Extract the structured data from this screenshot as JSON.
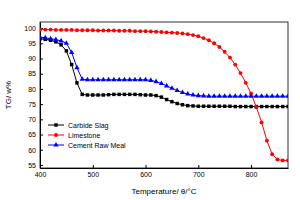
{
  "chart_data": {
    "type": "line",
    "x_label": "Temperature/ θ/°C",
    "y_label": "TG/ w%",
    "x": [
      400,
      410,
      420,
      430,
      440,
      450,
      460,
      470,
      480,
      490,
      500,
      510,
      520,
      530,
      540,
      550,
      560,
      570,
      580,
      590,
      600,
      610,
      620,
      630,
      640,
      650,
      660,
      670,
      680,
      690,
      700,
      710,
      720,
      730,
      740,
      750,
      760,
      770,
      780,
      790,
      800,
      810,
      820,
      830,
      840,
      850,
      860,
      870
    ],
    "series": [
      {
        "name": "Carbide Slag",
        "color": "#000000",
        "marker": "square",
        "values": [
          96.5,
          96.3,
          96.0,
          95.5,
          94.5,
          92.5,
          88.0,
          82.0,
          78.2,
          78.0,
          78.0,
          78.0,
          78.0,
          78.1,
          78.2,
          78.2,
          78.2,
          78.2,
          78.2,
          78.1,
          78.0,
          78.0,
          77.8,
          77.3,
          76.5,
          75.8,
          75.2,
          74.8,
          74.5,
          74.4,
          74.3,
          74.3,
          74.3,
          74.3,
          74.3,
          74.3,
          74.3,
          74.2,
          74.2,
          74.2,
          74.2,
          74.2,
          74.2,
          74.2,
          74.2,
          74.2,
          74.2,
          74.2
        ]
      },
      {
        "name": "Limestone",
        "color": "#ff0000",
        "marker": "circle",
        "values": [
          99.5,
          99.5,
          99.5,
          99.4,
          99.4,
          99.4,
          99.4,
          99.3,
          99.3,
          99.3,
          99.3,
          99.2,
          99.2,
          99.2,
          99.2,
          99.1,
          99.1,
          99.1,
          99.0,
          99.0,
          99.0,
          98.9,
          98.8,
          98.7,
          98.6,
          98.5,
          98.4,
          98.2,
          98.0,
          97.7,
          97.3,
          96.7,
          96.0,
          95.0,
          93.8,
          92.2,
          90.3,
          88.0,
          85.2,
          82.0,
          78.5,
          74.0,
          69.0,
          63.0,
          58.5,
          56.8,
          56.5,
          56.5
        ]
      },
      {
        "name": "Cement Raw Meal",
        "color": "#0000ff",
        "marker": "triangle",
        "values": [
          97.0,
          96.8,
          96.5,
          96.2,
          95.8,
          95.0,
          92.0,
          87.0,
          83.2,
          83.0,
          83.0,
          83.0,
          83.0,
          83.0,
          83.0,
          83.0,
          83.0,
          83.0,
          83.0,
          83.0,
          83.0,
          82.8,
          82.4,
          81.8,
          81.0,
          80.2,
          79.5,
          78.8,
          78.3,
          78.0,
          77.8,
          77.7,
          77.6,
          77.6,
          77.6,
          77.6,
          77.6,
          77.6,
          77.6,
          77.6,
          77.6,
          77.6,
          77.6,
          77.6,
          77.6,
          77.6,
          77.6,
          77.6
        ]
      }
    ],
    "xlim": [
      400,
      870
    ],
    "xticks": [
      400,
      500,
      600,
      700,
      800
    ],
    "ylim": [
      54,
      102
    ],
    "yticks": [
      55,
      60,
      65,
      70,
      75,
      80,
      85,
      90,
      95,
      100
    ],
    "grid": false,
    "legend": "lower left"
  }
}
